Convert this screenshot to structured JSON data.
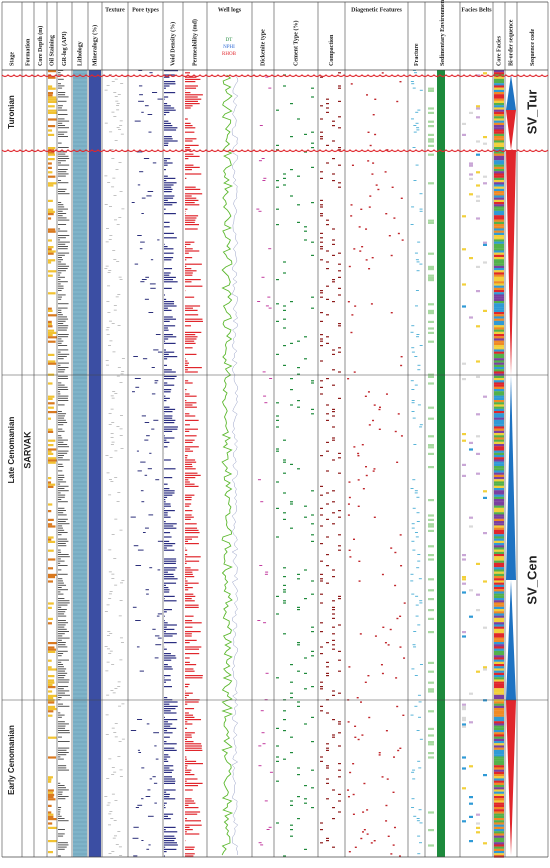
{
  "header": {
    "columns": [
      "Stage",
      "Formation",
      "Core Depth (m)",
      "Oil Staining",
      "GR-log (API)",
      "Lithology",
      "Mineralogy (%)",
      "Texture",
      "Pore types",
      "Void Density (%)",
      "Permeability (md)",
      "Well logs",
      "Dickenite type",
      "Cement Type (%)",
      "Compaction",
      "Diagenetic Features",
      "Fracture",
      "Sedimentary Environment",
      "Facies Belts",
      "Core Facies",
      "Bi-order sequence",
      "Sequence code"
    ],
    "well_log_legend": [
      "DT",
      "NPHI",
      "RHOB"
    ]
  },
  "stages": [
    "Turonian",
    "Late Cenomanian",
    "Early Cenomanian"
  ],
  "formation": "SARVAK",
  "sequence_codes": [
    "SV_Tur",
    "SV_Cen"
  ]
}
